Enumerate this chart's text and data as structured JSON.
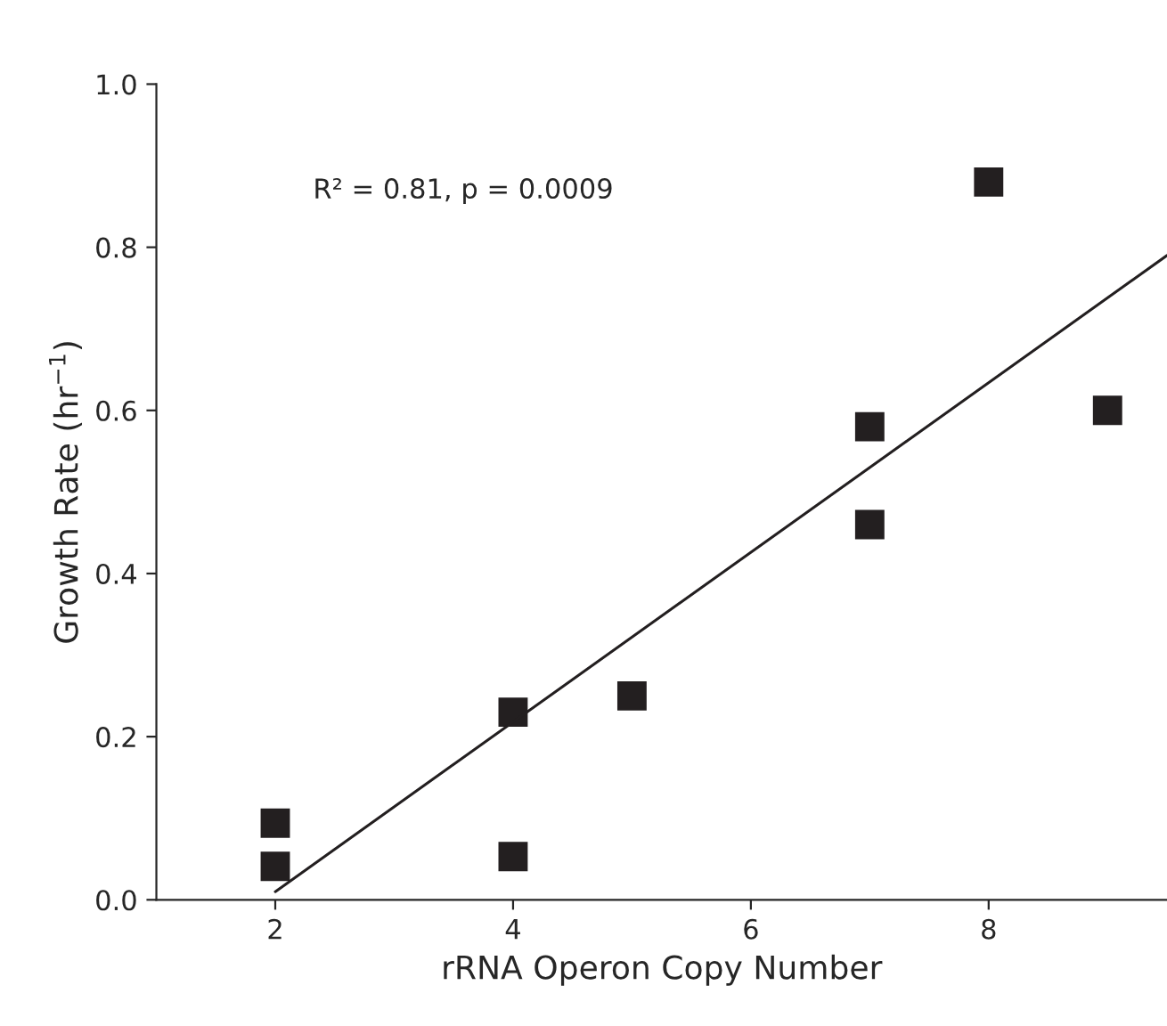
{
  "chart_data": {
    "type": "scatter",
    "xlabel": "rRNA Operon Copy Number",
    "ylabel": "Growth Rate (hr$^{−1}$)",
    "annotations": [
      "R² = 0.81, p = 0.0009"
    ],
    "series": [
      {
        "color": "#231f20",
        "marker": "square",
        "x": [
          2,
          2,
          4,
          4,
          5,
          7,
          7,
          8,
          9
        ],
        "values": [
          0.094,
          0.041,
          0.23,
          0.053,
          0.25,
          0.58,
          0.46,
          0.88,
          0.6
        ]
      },
      {
        "type": "line",
        "color": "#231f20",
        "marker": "none",
        "line_style": "solid",
        "x": [
          2,
          9.5
        ],
        "values": [
          0.01,
          0.79
        ]
      }
    ],
    "xlim": [
      1,
      9.5
    ],
    "xticks": [
      2,
      4,
      6,
      8
    ],
    "ylim": [
      0,
      1
    ],
    "yticks": [
      {
        "value": 0,
        "label": "0.0"
      },
      {
        "value": 0.2,
        "label": "0.2"
      },
      {
        "value": 0.4,
        "label": "0.4"
      },
      {
        "value": 0.6,
        "label": "0.6"
      },
      {
        "value": 0.8,
        "label": "0.8"
      },
      {
        "value": 1,
        "label": "1.0"
      }
    ],
    "grid": false,
    "legend": false
  }
}
